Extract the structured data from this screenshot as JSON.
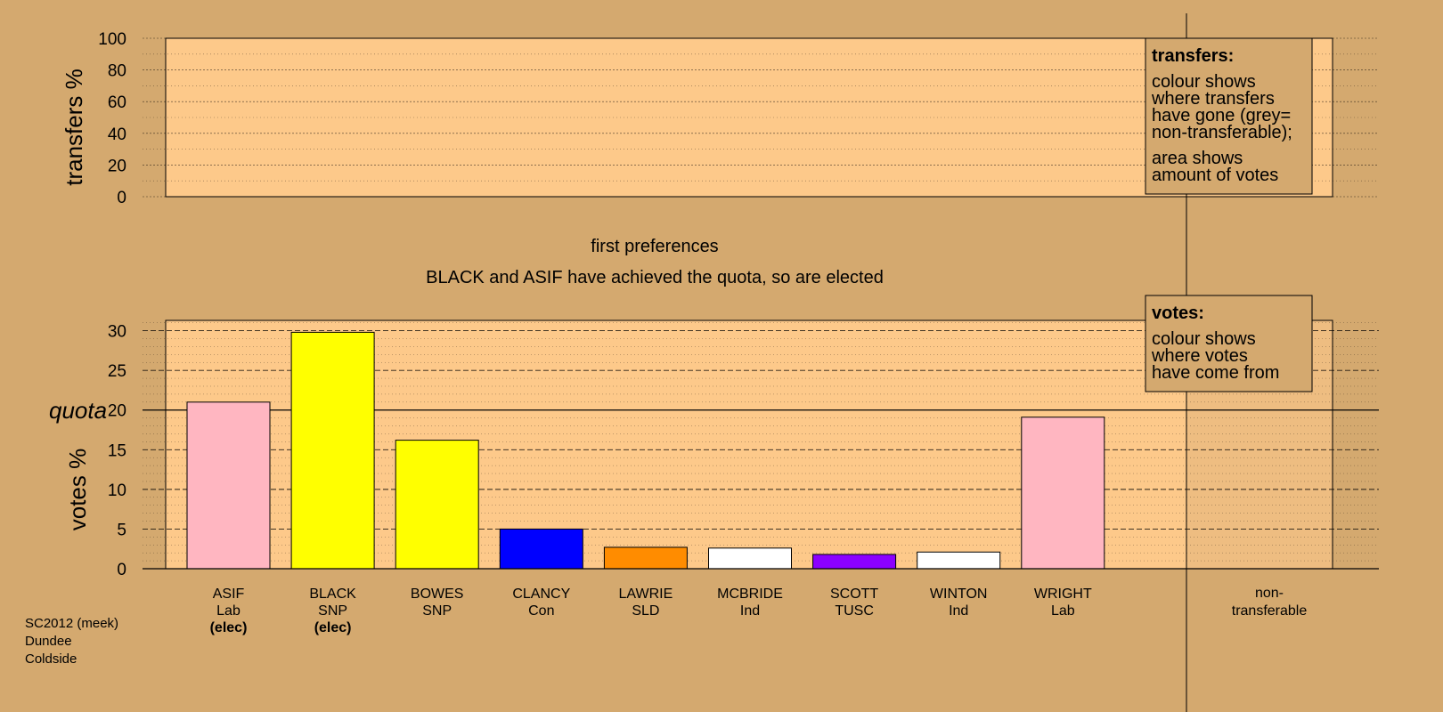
{
  "header": {
    "stage": "first preferences",
    "message": "BLACK and ASIF have achieved the quota, so are elected"
  },
  "footer": [
    "SC2012 (meek)",
    "Dundee",
    "Coldside"
  ],
  "transfers_legend": {
    "title": "transfers:",
    "lines1": [
      "colour shows",
      "where transfers",
      "have gone (grey=",
      "non-transferable);"
    ],
    "lines2": [
      "area shows",
      "amount of votes"
    ]
  },
  "votes_legend": {
    "title": "votes:",
    "lines": [
      "colour shows",
      "where votes",
      "have come from"
    ]
  },
  "colors": {
    "background": "#d4a96f",
    "plot": "#fdc98a",
    "nontransferable_shade": "#e9b77a"
  },
  "chart_data": [
    {
      "type": "bar",
      "title": "",
      "ylabel": "transfers %",
      "ylim": [
        0,
        100
      ],
      "yticks": [
        0,
        20,
        40,
        60,
        80,
        100
      ],
      "series": []
    },
    {
      "type": "bar",
      "ylabel": "votes %",
      "ylim": [
        0,
        31.3
      ],
      "yticks": [
        0,
        5,
        10,
        15,
        20,
        25,
        30
      ],
      "quota": 20,
      "quota_label": "quota",
      "candidates": [
        {
          "name": "ASIF",
          "party": "Lab",
          "status": "(elec)",
          "value": 21.0,
          "color": "#ffb6c1"
        },
        {
          "name": "BLACK",
          "party": "SNP",
          "status": "(elec)",
          "value": 29.8,
          "color": "#ffff00"
        },
        {
          "name": "BOWES",
          "party": "SNP",
          "status": "",
          "value": 16.2,
          "color": "#ffff00"
        },
        {
          "name": "CLANCY",
          "party": "Con",
          "status": "",
          "value": 5.0,
          "color": "#0000ff"
        },
        {
          "name": "LAWRIE",
          "party": "SLD",
          "status": "",
          "value": 2.7,
          "color": "#ff8c00"
        },
        {
          "name": "MCBRIDE",
          "party": "Ind",
          "status": "",
          "value": 2.6,
          "color": "#ffffff"
        },
        {
          "name": "SCOTT",
          "party": "TUSC",
          "status": "",
          "value": 1.8,
          "color": "#8b00ff"
        },
        {
          "name": "WINTON",
          "party": "Ind",
          "status": "",
          "value": 2.1,
          "color": "#ffffff"
        },
        {
          "name": "WRIGHT",
          "party": "Lab",
          "status": "",
          "value": 19.1,
          "color": "#ffb6c1"
        }
      ],
      "nontransferable": {
        "lines": [
          "non-",
          "transferable"
        ],
        "value": 0
      }
    }
  ]
}
